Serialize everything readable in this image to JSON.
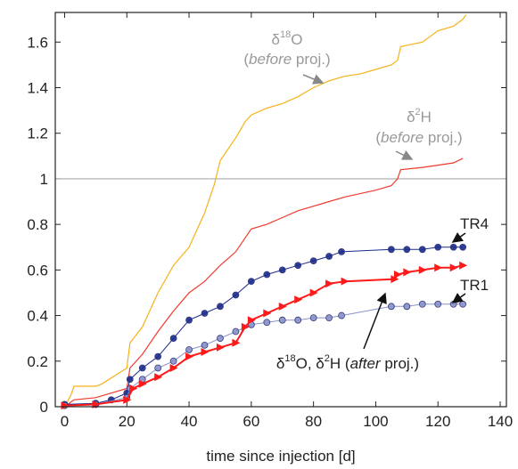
{
  "chart_data": {
    "type": "line",
    "x_label": "time since injection [d]",
    "xlim": [
      -3,
      142
    ],
    "xticks": [
      0,
      20,
      40,
      60,
      80,
      100,
      120,
      140
    ],
    "ylim": [
      0,
      1.73
    ],
    "yticks": [
      0,
      0.2,
      0.4,
      0.6,
      0.8,
      1,
      1.2,
      1.4,
      1.6
    ],
    "hline": 1,
    "hline_color": "#aaaaaa",
    "series": [
      {
        "color": "#f5b21a",
        "marker": "none",
        "x": [
          0,
          2,
          3,
          10,
          12,
          20,
          21,
          25,
          30,
          35,
          40,
          45,
          48,
          50,
          55,
          58,
          60,
          65,
          70,
          75,
          80,
          85,
          90,
          95,
          100,
          105,
          107,
          108,
          115,
          120,
          125,
          128,
          129
        ],
        "values": [
          0,
          0.05,
          0.09,
          0.09,
          0.1,
          0.17,
          0.28,
          0.35,
          0.5,
          0.62,
          0.7,
          0.85,
          0.97,
          1.08,
          1.18,
          1.25,
          1.28,
          1.31,
          1.33,
          1.36,
          1.4,
          1.43,
          1.45,
          1.46,
          1.48,
          1.5,
          1.52,
          1.58,
          1.6,
          1.65,
          1.67,
          1.7,
          1.72
        ]
      },
      {
        "color": "#f03a2e",
        "marker": "none",
        "x": [
          0,
          3,
          10,
          20,
          21,
          25,
          30,
          35,
          40,
          45,
          50,
          55,
          60,
          65,
          70,
          75,
          80,
          85,
          90,
          100,
          105,
          107,
          108,
          115,
          120,
          125,
          128
        ],
        "values": [
          0,
          0.03,
          0.04,
          0.08,
          0.17,
          0.23,
          0.33,
          0.42,
          0.5,
          0.55,
          0.62,
          0.68,
          0.78,
          0.8,
          0.83,
          0.86,
          0.88,
          0.9,
          0.92,
          0.95,
          0.97,
          1.0,
          1.04,
          1.05,
          1.06,
          1.07,
          1.09
        ]
      },
      {
        "color": "#1b2a8c",
        "marker": "circle",
        "x": [
          0,
          10,
          15,
          20,
          21,
          25,
          30,
          35,
          40,
          45,
          50,
          55,
          60,
          65,
          70,
          75,
          80,
          85,
          89,
          105,
          110,
          115,
          120,
          125,
          128
        ],
        "values": [
          0.01,
          0.015,
          0.03,
          0.06,
          0.12,
          0.17,
          0.22,
          0.3,
          0.38,
          0.41,
          0.44,
          0.49,
          0.55,
          0.58,
          0.6,
          0.62,
          0.64,
          0.66,
          0.68,
          0.69,
          0.69,
          0.69,
          0.7,
          0.7,
          0.7
        ]
      },
      {
        "color": "#8891c8",
        "marker": "circle",
        "x": [
          0,
          10,
          20,
          21,
          25,
          30,
          35,
          40,
          45,
          50,
          55,
          60,
          65,
          70,
          75,
          80,
          85,
          89,
          105,
          110,
          115,
          120,
          125,
          128
        ],
        "values": [
          0.005,
          0.01,
          0.04,
          0.08,
          0.12,
          0.17,
          0.2,
          0.25,
          0.27,
          0.3,
          0.33,
          0.36,
          0.37,
          0.38,
          0.38,
          0.39,
          0.39,
          0.4,
          0.44,
          0.44,
          0.45,
          0.45,
          0.45,
          0.45
        ]
      },
      {
        "color": "#ff1a1a",
        "marker": "triangle",
        "x": [
          0,
          10,
          20,
          22,
          25,
          30,
          35,
          40,
          45,
          50,
          55,
          58,
          60,
          65,
          70,
          75,
          80,
          85,
          90,
          106,
          107,
          110,
          115,
          120,
          125,
          128
        ],
        "values": [
          0.005,
          0.01,
          0.03,
          0.08,
          0.1,
          0.13,
          0.17,
          0.22,
          0.24,
          0.26,
          0.28,
          0.35,
          0.38,
          0.41,
          0.44,
          0.47,
          0.5,
          0.54,
          0.55,
          0.56,
          0.58,
          0.59,
          0.6,
          0.61,
          0.61,
          0.62
        ]
      }
    ],
    "annotations": [
      {
        "lines": [
          [
            "δ",
            "18",
            "O"
          ],
          [
            "(",
            "before",
            " proj.)"
          ]
        ]
      },
      {
        "lines": [
          [
            "δ",
            "2",
            "H"
          ],
          [
            "(",
            "before",
            " proj.)"
          ]
        ]
      },
      {
        "lines": [
          [
            "TR4"
          ]
        ]
      },
      {
        "lines": [
          [
            "TR1"
          ]
        ]
      },
      {
        "lines": [
          [
            "δ",
            "18",
            "O, δ",
            "2",
            "H (",
            "after",
            " proj.)"
          ]
        ]
      }
    ]
  }
}
